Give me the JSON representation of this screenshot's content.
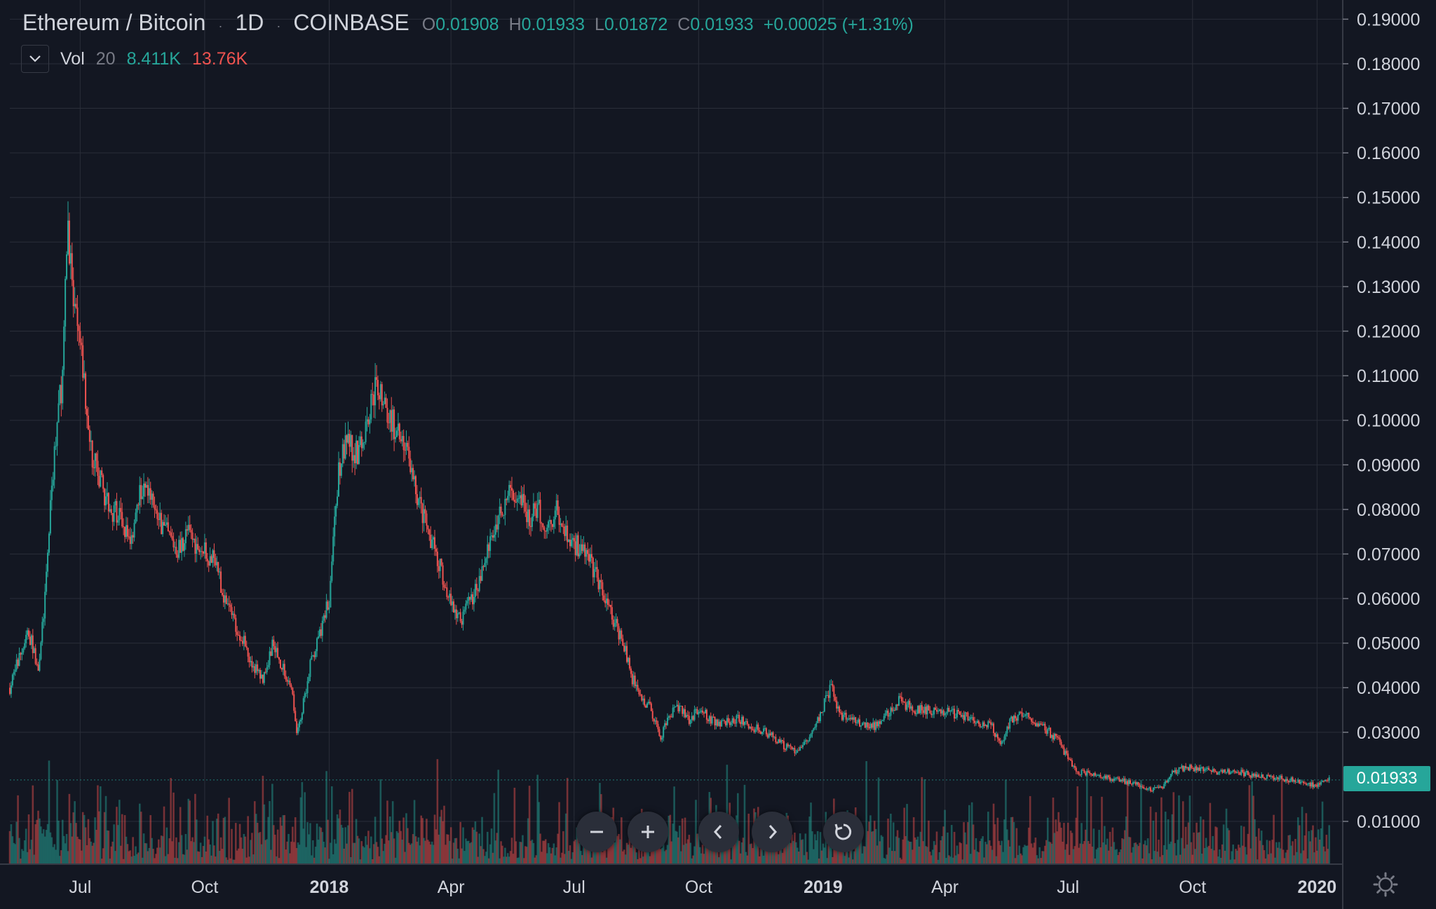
{
  "header": {
    "symbol": "Ethereum / Bitcoin",
    "interval": "1D",
    "exchange": "COINBASE",
    "separator": "·",
    "o_key": "O",
    "o_val": "0.01908",
    "h_key": "H",
    "h_val": "0.01933",
    "l_key": "L",
    "l_val": "0.01872",
    "c_key": "C",
    "c_val": "0.01933",
    "change": "+0.00025 (+1.31%)"
  },
  "volume_indicator": {
    "label": "Vol",
    "length": "20",
    "up_value": "8.411K",
    "down_value": "13.76K"
  },
  "last_price_label": "0.01933",
  "navigation": {
    "buttons": [
      "zoom-out",
      "zoom-in",
      "scroll-left",
      "scroll-right",
      "reset"
    ]
  },
  "icons": {
    "toggle": "chevron-down-icon",
    "settings": "gear-icon"
  },
  "colors": {
    "background": "#131722",
    "grid": "#2a2e39",
    "up": "#26a69a",
    "down": "#ef5350",
    "text": "#d1d4dc"
  },
  "chart_data": {
    "type": "line",
    "title": "Ethereum / Bitcoin",
    "xlabel": "",
    "ylabel": "",
    "ylim": [
      0,
      0.19
    ],
    "xlim": [
      "2017-05-10",
      "2020-01-20"
    ],
    "y_ticks": [
      "0.19000",
      "0.18000",
      "0.17000",
      "0.16000",
      "0.15000",
      "0.14000",
      "0.13000",
      "0.12000",
      "0.11000",
      "0.10000",
      "0.09000",
      "0.08000",
      "0.07000",
      "0.06000",
      "0.05000",
      "0.04000",
      "0.03000",
      "0.01000"
    ],
    "x_ticks": [
      {
        "date": "2017-07-01",
        "label": "Jul",
        "major": false
      },
      {
        "date": "2017-10-01",
        "label": "Oct",
        "major": false
      },
      {
        "date": "2018-01-01",
        "label": "2018",
        "major": true
      },
      {
        "date": "2018-04-01",
        "label": "Apr",
        "major": false
      },
      {
        "date": "2018-07-01",
        "label": "Jul",
        "major": false
      },
      {
        "date": "2018-10-01",
        "label": "Oct",
        "major": false
      },
      {
        "date": "2019-01-01",
        "label": "2019",
        "major": true
      },
      {
        "date": "2019-04-01",
        "label": "Apr",
        "major": false
      },
      {
        "date": "2019-07-01",
        "label": "Jul",
        "major": false
      },
      {
        "date": "2019-10-01",
        "label": "Oct",
        "major": false
      },
      {
        "date": "2020-01-01",
        "label": "2020",
        "major": true
      }
    ],
    "grid": true,
    "series": [
      {
        "x": [
          "2017-05-10",
          "2017-05-17",
          "2017-05-24",
          "2017-05-31",
          "2017-06-05",
          "2017-06-10",
          "2017-06-14",
          "2017-06-18",
          "2017-06-22",
          "2017-06-26",
          "2017-07-03",
          "2017-07-10",
          "2017-07-17",
          "2017-07-24",
          "2017-07-31",
          "2017-08-07",
          "2017-08-14",
          "2017-08-21",
          "2017-08-28",
          "2017-09-04",
          "2017-09-11",
          "2017-09-18",
          "2017-09-25",
          "2017-10-02",
          "2017-10-09",
          "2017-10-16",
          "2017-10-23",
          "2017-10-30",
          "2017-11-06",
          "2017-11-13",
          "2017-11-20",
          "2017-11-27",
          "2017-12-04",
          "2017-12-08",
          "2017-12-12",
          "2017-12-18",
          "2017-12-25",
          "2018-01-01",
          "2018-01-08",
          "2018-01-15",
          "2018-01-22",
          "2018-01-29",
          "2018-02-05",
          "2018-02-12",
          "2018-02-19",
          "2018-02-26",
          "2018-03-05",
          "2018-03-12",
          "2018-03-19",
          "2018-03-26",
          "2018-04-02",
          "2018-04-09",
          "2018-04-16",
          "2018-04-23",
          "2018-04-30",
          "2018-05-07",
          "2018-05-14",
          "2018-05-21",
          "2018-05-28",
          "2018-06-04",
          "2018-06-11",
          "2018-06-18",
          "2018-06-25",
          "2018-07-02",
          "2018-07-09",
          "2018-07-16",
          "2018-07-23",
          "2018-07-30",
          "2018-08-06",
          "2018-08-13",
          "2018-08-20",
          "2018-08-27",
          "2018-09-03",
          "2018-09-10",
          "2018-09-17",
          "2018-09-24",
          "2018-10-01",
          "2018-10-15",
          "2018-10-29",
          "2018-11-12",
          "2018-11-19",
          "2018-11-26",
          "2018-12-03",
          "2018-12-10",
          "2018-12-17",
          "2018-12-24",
          "2018-12-31",
          "2019-01-07",
          "2019-01-14",
          "2019-01-21",
          "2019-02-04",
          "2019-02-11",
          "2019-02-18",
          "2019-02-25",
          "2019-03-11",
          "2019-03-25",
          "2019-04-08",
          "2019-04-22",
          "2019-05-06",
          "2019-05-13",
          "2019-05-20",
          "2019-05-27",
          "2019-06-10",
          "2019-06-24",
          "2019-07-01",
          "2019-07-08",
          "2019-07-15",
          "2019-07-29",
          "2019-08-12",
          "2019-08-26",
          "2019-09-02",
          "2019-09-09",
          "2019-09-16",
          "2019-09-23",
          "2019-10-07",
          "2019-10-21",
          "2019-11-04",
          "2019-11-18",
          "2019-12-02",
          "2019-12-16",
          "2019-12-30",
          "2020-01-06",
          "2020-01-10"
        ],
        "close": [
          0.04,
          0.047,
          0.052,
          0.045,
          0.06,
          0.085,
          0.1,
          0.11,
          0.145,
          0.125,
          0.112,
          0.092,
          0.085,
          0.08,
          0.078,
          0.072,
          0.085,
          0.082,
          0.078,
          0.074,
          0.071,
          0.075,
          0.072,
          0.07,
          0.068,
          0.06,
          0.055,
          0.05,
          0.045,
          0.042,
          0.05,
          0.045,
          0.04,
          0.03,
          0.035,
          0.045,
          0.052,
          0.06,
          0.09,
          0.095,
          0.092,
          0.1,
          0.108,
          0.102,
          0.098,
          0.095,
          0.085,
          0.078,
          0.072,
          0.065,
          0.058,
          0.055,
          0.06,
          0.065,
          0.072,
          0.08,
          0.083,
          0.085,
          0.078,
          0.08,
          0.076,
          0.08,
          0.074,
          0.072,
          0.07,
          0.066,
          0.06,
          0.055,
          0.05,
          0.042,
          0.038,
          0.035,
          0.029,
          0.034,
          0.036,
          0.033,
          0.035,
          0.032,
          0.033,
          0.031,
          0.03,
          0.029,
          0.027,
          0.026,
          0.027,
          0.03,
          0.035,
          0.04,
          0.034,
          0.033,
          0.031,
          0.032,
          0.034,
          0.037,
          0.035,
          0.035,
          0.034,
          0.033,
          0.031,
          0.027,
          0.033,
          0.034,
          0.032,
          0.028,
          0.024,
          0.021,
          0.021,
          0.02,
          0.019,
          0.018,
          0.017,
          0.018,
          0.021,
          0.022,
          0.022,
          0.021,
          0.021,
          0.02,
          0.02,
          0.019,
          0.018,
          0.019,
          0.0193
        ]
      }
    ]
  }
}
